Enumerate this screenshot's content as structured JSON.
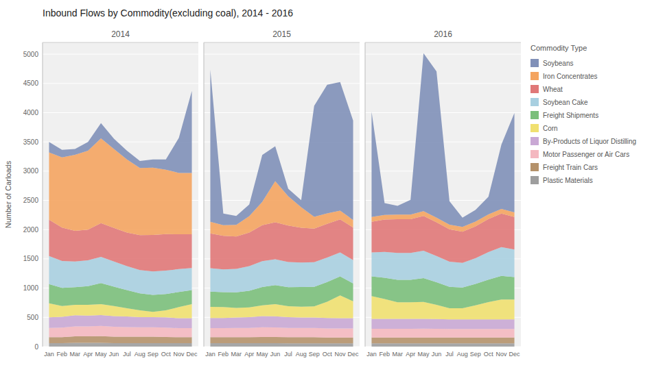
{
  "chart_data": [
    {
      "type": "area",
      "stacked": true,
      "grid": true,
      "title": "Inbound Flows by Commodity(excluding coal), 2014 - 2016",
      "subtitle": "2014",
      "ylabel": "Number of Carloads",
      "categories": [
        "Jan",
        "Feb",
        "Mar",
        "Apr",
        "May",
        "Jun",
        "Jul",
        "Aug",
        "Sep",
        "Oct",
        "Nov",
        "Dec"
      ],
      "ylim": [
        0,
        5200
      ],
      "yticks": [
        0,
        500,
        1000,
        1500,
        2000,
        2500,
        3000,
        3500,
        4000,
        4500,
        5000
      ],
      "series": [
        {
          "name": "Plastic Materials",
          "color": "#9e9e9e",
          "values": [
            60,
            60,
            65,
            65,
            65,
            60,
            60,
            60,
            60,
            60,
            60,
            60
          ]
        },
        {
          "name": "Freight Train Cars",
          "color": "#b5926b",
          "values": [
            100,
            100,
            110,
            110,
            115,
            110,
            110,
            110,
            110,
            105,
            100,
            100
          ]
        },
        {
          "name": "Motor Passenger or Air Cars",
          "color": "#f4b8c0",
          "values": [
            160,
            165,
            170,
            170,
            175,
            170,
            165,
            160,
            160,
            160,
            155,
            155
          ]
        },
        {
          "name": "By-Products of Liquor Distilling",
          "color": "#c9a8d4",
          "values": [
            180,
            185,
            190,
            185,
            185,
            180,
            180,
            175,
            175,
            175,
            170,
            170
          ]
        },
        {
          "name": "Corn",
          "color": "#f0e070",
          "values": [
            240,
            185,
            180,
            185,
            185,
            175,
            140,
            115,
            90,
            120,
            190,
            240
          ]
        },
        {
          "name": "Freight Shipments",
          "color": "#7bbf7b",
          "values": [
            330,
            310,
            300,
            320,
            360,
            330,
            310,
            290,
            290,
            280,
            260,
            240
          ]
        },
        {
          "name": "Soybean Cake",
          "color": "#a8cfe0",
          "values": [
            480,
            460,
            440,
            440,
            450,
            430,
            410,
            400,
            400,
            400,
            390,
            380
          ]
        },
        {
          "name": "Wheat",
          "color": "#e07878",
          "values": [
            620,
            570,
            525,
            525,
            575,
            575,
            575,
            595,
            625,
            625,
            595,
            575
          ]
        },
        {
          "name": "Iron Concentrates",
          "color": "#f4a460",
          "values": [
            1150,
            1200,
            1300,
            1350,
            1450,
            1350,
            1250,
            1150,
            1150,
            1100,
            1050,
            1050
          ]
        },
        {
          "name": "Soybeans",
          "color": "#8090b8",
          "values": [
            180,
            130,
            100,
            150,
            260,
            175,
            150,
            120,
            140,
            175,
            600,
            1400
          ]
        }
      ]
    },
    {
      "type": "area",
      "stacked": true,
      "grid": true,
      "tick_labels": "x",
      "subtitle": "2015",
      "categories": [
        "Jan",
        "Feb",
        "Mar",
        "Apr",
        "May",
        "Jun",
        "Jul",
        "Aug",
        "Sep",
        "Oct",
        "Nov",
        "Dec"
      ],
      "ylim": [
        0,
        5200
      ],
      "yticks": [
        0,
        500,
        1000,
        1500,
        2000,
        2500,
        3000,
        3500,
        4000,
        4500,
        5000
      ],
      "series": [
        {
          "name": "Plastic Materials",
          "color": "#9e9e9e",
          "values": [
            60,
            60,
            60,
            60,
            60,
            60,
            55,
            55,
            55,
            55,
            55,
            55
          ]
        },
        {
          "name": "Freight Train Cars",
          "color": "#b5926b",
          "values": [
            100,
            100,
            100,
            100,
            105,
            105,
            105,
            105,
            105,
            100,
            100,
            100
          ]
        },
        {
          "name": "Motor Passenger or Air Cars",
          "color": "#f4b8c0",
          "values": [
            155,
            155,
            158,
            160,
            165,
            162,
            160,
            158,
            158,
            155,
            155,
            155
          ]
        },
        {
          "name": "By-Products of Liquor Distilling",
          "color": "#c9a8d4",
          "values": [
            175,
            175,
            180,
            185,
            190,
            190,
            185,
            180,
            180,
            178,
            175,
            175
          ]
        },
        {
          "name": "Corn",
          "color": "#f0e070",
          "values": [
            190,
            185,
            165,
            165,
            185,
            210,
            185,
            185,
            190,
            280,
            390,
            290
          ]
        },
        {
          "name": "Freight Shipments",
          "color": "#7bbf7b",
          "values": [
            260,
            255,
            265,
            285,
            315,
            325,
            325,
            335,
            335,
            335,
            325,
            305
          ]
        },
        {
          "name": "Soybean Cake",
          "color": "#a8cfe0",
          "values": [
            400,
            390,
            400,
            420,
            440,
            440,
            430,
            420,
            420,
            420,
            410,
            400
          ]
        },
        {
          "name": "Wheat",
          "color": "#e07878",
          "values": [
            595,
            575,
            555,
            575,
            615,
            635,
            625,
            595,
            575,
            575,
            565,
            555
          ]
        },
        {
          "name": "Iron Concentrates",
          "color": "#f4a460",
          "values": [
            200,
            180,
            200,
            280,
            400,
            700,
            500,
            350,
            200,
            180,
            150,
            130
          ]
        },
        {
          "name": "Soybeans",
          "color": "#8090b8",
          "values": [
            2600,
            200,
            150,
            200,
            800,
            600,
            130,
            120,
            1900,
            2200,
            2200,
            1700
          ]
        }
      ]
    },
    {
      "type": "area",
      "stacked": true,
      "grid": true,
      "tick_labels": "x",
      "subtitle": "2016",
      "legend": "right",
      "legend_title": "Commodity Type",
      "categories": [
        "Jan",
        "Feb",
        "Mar",
        "Apr",
        "May",
        "Jun",
        "Jul",
        "Aug",
        "Sep",
        "Oct",
        "Nov",
        "Dec"
      ],
      "ylim": [
        0,
        5200
      ],
      "yticks": [
        0,
        500,
        1000,
        1500,
        2000,
        2500,
        3000,
        3500,
        4000,
        4500,
        5000
      ],
      "series": [
        {
          "name": "Plastic Materials",
          "color": "#9e9e9e",
          "values": [
            55,
            55,
            55,
            55,
            55,
            55,
            55,
            55,
            55,
            55,
            55,
            55
          ]
        },
        {
          "name": "Freight Train Cars",
          "color": "#b5926b",
          "values": [
            100,
            100,
            100,
            100,
            100,
            100,
            100,
            100,
            100,
            100,
            100,
            100
          ]
        },
        {
          "name": "Motor Passenger or Air Cars",
          "color": "#f4b8c0",
          "values": [
            150,
            150,
            150,
            150,
            152,
            150,
            148,
            148,
            148,
            148,
            148,
            148
          ]
        },
        {
          "name": "By-Products of Liquor Distilling",
          "color": "#c9a8d4",
          "values": [
            170,
            168,
            168,
            168,
            168,
            165,
            163,
            163,
            163,
            163,
            162,
            162
          ]
        },
        {
          "name": "Corn",
          "color": "#f0e070",
          "values": [
            390,
            340,
            285,
            285,
            290,
            245,
            190,
            190,
            240,
            295,
            340,
            340
          ]
        },
        {
          "name": "Freight Shipments",
          "color": "#7bbf7b",
          "values": [
            335,
            365,
            385,
            385,
            405,
            385,
            365,
            355,
            365,
            385,
            405,
            385
          ]
        },
        {
          "name": "Soybean Cake",
          "color": "#a8cfe0",
          "values": [
            410,
            440,
            460,
            460,
            470,
            450,
            430,
            420,
            440,
            470,
            490,
            470
          ]
        },
        {
          "name": "Wheat",
          "color": "#e07878",
          "values": [
            525,
            555,
            575,
            575,
            595,
            575,
            555,
            535,
            545,
            565,
            575,
            555
          ]
        },
        {
          "name": "Iron Concentrates",
          "color": "#f4a460",
          "values": [
            80,
            80,
            80,
            80,
            80,
            80,
            80,
            80,
            80,
            80,
            80,
            80
          ]
        },
        {
          "name": "Soybeans",
          "color": "#8090b8",
          "values": [
            1800,
            200,
            150,
            250,
            2700,
            2500,
            400,
            160,
            200,
            300,
            1100,
            1700
          ]
        }
      ]
    }
  ]
}
